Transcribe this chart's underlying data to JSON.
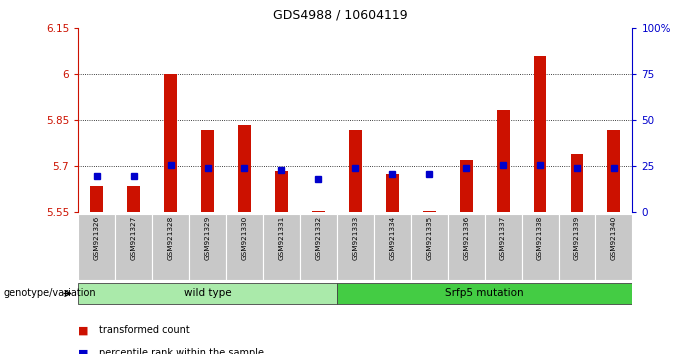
{
  "title": "GDS4988 / 10604119",
  "samples": [
    "GSM921326",
    "GSM921327",
    "GSM921328",
    "GSM921329",
    "GSM921330",
    "GSM921331",
    "GSM921332",
    "GSM921333",
    "GSM921334",
    "GSM921335",
    "GSM921336",
    "GSM921337",
    "GSM921338",
    "GSM921339",
    "GSM921340"
  ],
  "transformed_count": [
    5.635,
    5.635,
    6.0,
    5.82,
    5.835,
    5.685,
    5.555,
    5.82,
    5.675,
    5.555,
    5.72,
    5.885,
    6.06,
    5.74,
    5.82
  ],
  "percentile_rank": [
    20,
    20,
    26,
    24,
    24,
    23,
    18,
    24,
    21,
    21,
    24,
    26,
    26,
    24,
    24
  ],
  "ylim_left": [
    5.55,
    6.15
  ],
  "ylim_right": [
    0,
    100
  ],
  "yticks_left": [
    5.55,
    5.7,
    5.85,
    6.0,
    6.15
  ],
  "yticks_right": [
    0,
    25,
    50,
    75,
    100
  ],
  "ytick_labels_left": [
    "5.55",
    "5.7",
    "5.85",
    "6",
    "6.15"
  ],
  "ytick_labels_right": [
    "0",
    "25",
    "50",
    "75",
    "100%"
  ],
  "hlines": [
    5.7,
    5.85,
    6.0
  ],
  "bar_color": "#cc1100",
  "dot_color": "#0000cc",
  "bar_bottom": 5.55,
  "wild_type_samples": 7,
  "wild_type_label": "wild type",
  "mutation_label": "Srfp5 mutation",
  "genotype_label": "genotype/variation",
  "legend_bar": "transformed count",
  "legend_dot": "percentile rank within the sample",
  "bg_plot": "#ffffff",
  "xticklabel_bg": "#c8c8c8",
  "green_light": "#aaeaaa",
  "green_dark": "#44cc44",
  "left_axis_color": "#cc1100",
  "right_axis_color": "#0000cc",
  "bar_width": 0.35
}
